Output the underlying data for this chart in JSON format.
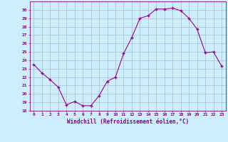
{
  "x": [
    0,
    1,
    2,
    3,
    4,
    5,
    6,
    7,
    8,
    9,
    10,
    11,
    12,
    13,
    14,
    15,
    16,
    17,
    18,
    19,
    20,
    21,
    22,
    23
  ],
  "y": [
    23.5,
    22.5,
    21.7,
    20.8,
    18.7,
    19.1,
    18.6,
    18.6,
    19.8,
    21.5,
    22.0,
    24.8,
    26.7,
    29.0,
    29.3,
    30.1,
    30.1,
    30.2,
    29.9,
    29.0,
    27.7,
    24.9,
    25.0,
    23.3
  ],
  "xlabel": "Windchill (Refroidissement éolien,°C)",
  "xlim": [
    -0.5,
    23.5
  ],
  "ylim": [
    18,
    31
  ],
  "yticks": [
    18,
    19,
    20,
    21,
    22,
    23,
    24,
    25,
    26,
    27,
    28,
    29,
    30
  ],
  "xticks": [
    0,
    1,
    2,
    3,
    4,
    5,
    6,
    7,
    8,
    9,
    10,
    11,
    12,
    13,
    14,
    15,
    16,
    17,
    18,
    19,
    20,
    21,
    22,
    23
  ],
  "line_color": "#990099",
  "marker": "+",
  "bg_color": "#cceeff",
  "grid_color": "#aabbcc",
  "tick_label_color": "#880088",
  "axis_label_color": "#880088"
}
